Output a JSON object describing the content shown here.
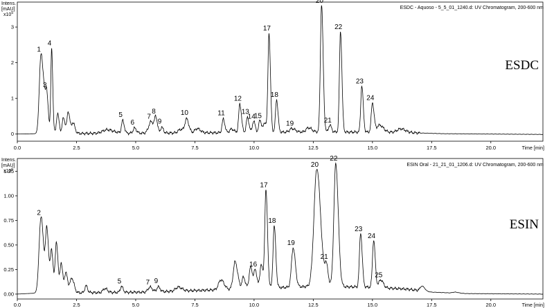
{
  "chart_data": [
    {
      "type": "line",
      "title": "ESDC - Aquoso - 5_5_01_1240.d: UV Chromatogram, 200-600 nm",
      "sample_label": "ESDC",
      "ylabel_lines": [
        "Intens.",
        "[mAU]"
      ],
      "y_exponent": "x10",
      "y_exponent_power": "5",
      "xlabel": "Time [min]",
      "xlim": [
        0,
        22.2
      ],
      "ylim": [
        -0.2,
        3.7
      ],
      "x_ticks": [
        "0.0",
        "2.5",
        "5.0",
        "7.5",
        "10.0",
        "12.5",
        "15.0",
        "17.5",
        "20.0"
      ],
      "x_tick_values": [
        0,
        2.5,
        5,
        7.5,
        10,
        12.5,
        15,
        17.5,
        20
      ],
      "y_ticks": [
        "0",
        "1",
        "2",
        "3"
      ],
      "y_tick_values": [
        0,
        1,
        2,
        3
      ],
      "baseline_points": [
        [
          0,
          0
        ],
        [
          0.8,
          0.01
        ],
        [
          9.0,
          0.04
        ],
        [
          12.5,
          0.06
        ],
        [
          16.0,
          0.05
        ],
        [
          18.0,
          0.01
        ],
        [
          22.2,
          -0.01
        ]
      ],
      "peaks": [
        {
          "label": "1",
          "x": 1.0,
          "y": 2.25,
          "w": 0.07
        },
        {
          "label": "",
          "x": 1.15,
          "y": 0.6,
          "w": 0.05
        },
        {
          "label": "3",
          "x": 1.25,
          "y": 0.95,
          "w": 0.05
        },
        {
          "label": "4",
          "x": 1.45,
          "y": 2.38,
          "w": 0.035
        },
        {
          "label": "",
          "x": 1.7,
          "y": 0.55,
          "w": 0.05
        },
        {
          "label": "",
          "x": 1.95,
          "y": 0.45,
          "w": 0.05
        },
        {
          "label": "",
          "x": 2.15,
          "y": 0.62,
          "w": 0.05
        },
        {
          "label": "",
          "x": 2.35,
          "y": 0.3,
          "w": 0.06
        },
        {
          "label": "",
          "x": 3.8,
          "y": 0.1,
          "w": 0.2
        },
        {
          "label": "5",
          "x": 4.45,
          "y": 0.35,
          "w": 0.05
        },
        {
          "label": "6",
          "x": 4.95,
          "y": 0.14,
          "w": 0.06
        },
        {
          "label": "7",
          "x": 5.65,
          "y": 0.32,
          "w": 0.1
        },
        {
          "label": "8",
          "x": 5.85,
          "y": 0.38,
          "w": 0.05
        },
        {
          "label": "9",
          "x": 6.1,
          "y": 0.16,
          "w": 0.05
        },
        {
          "label": "",
          "x": 6.9,
          "y": 0.1,
          "w": 0.1
        },
        {
          "label": "10",
          "x": 7.15,
          "y": 0.38,
          "w": 0.07
        },
        {
          "label": "",
          "x": 7.6,
          "y": 0.12,
          "w": 0.1
        },
        {
          "label": "11",
          "x": 8.7,
          "y": 0.38,
          "w": 0.05
        },
        {
          "label": "",
          "x": 9.05,
          "y": 0.1,
          "w": 0.08
        },
        {
          "label": "12",
          "x": 9.4,
          "y": 0.8,
          "w": 0.05
        },
        {
          "label": "13",
          "x": 9.72,
          "y": 0.42,
          "w": 0.05
        },
        {
          "label": "14",
          "x": 9.98,
          "y": 0.32,
          "w": 0.05
        },
        {
          "label": "15",
          "x": 10.25,
          "y": 0.35,
          "w": 0.05
        },
        {
          "label": "",
          "x": 10.45,
          "y": 0.28,
          "w": 0.05
        },
        {
          "label": "17",
          "x": 10.63,
          "y": 2.77,
          "w": 0.045
        },
        {
          "label": "18",
          "x": 10.95,
          "y": 0.92,
          "w": 0.045
        },
        {
          "label": "19",
          "x": 11.6,
          "y": 0.1,
          "w": 0.1
        },
        {
          "label": "",
          "x": 12.3,
          "y": 0.12,
          "w": 0.1
        },
        {
          "label": "20",
          "x": 12.85,
          "y": 3.58,
          "w": 0.05
        },
        {
          "label": "21",
          "x": 13.2,
          "y": 0.2,
          "w": 0.05
        },
        {
          "label": "22",
          "x": 13.65,
          "y": 2.82,
          "w": 0.045
        },
        {
          "label": "23",
          "x": 14.55,
          "y": 1.3,
          "w": 0.045
        },
        {
          "label": "24",
          "x": 15.0,
          "y": 0.82,
          "w": 0.05
        },
        {
          "label": "",
          "x": 15.3,
          "y": 0.2,
          "w": 0.12
        },
        {
          "label": "",
          "x": 16.2,
          "y": 0.1,
          "w": 0.15
        }
      ]
    },
    {
      "type": "line",
      "title": "ESIN Oral - 21_21_01_1206.d: UV Chromatogram, 200-600 nm",
      "sample_label": "ESIN",
      "ylabel_lines": [
        "Intens.",
        "[mAU]"
      ],
      "y_exponent": "x10",
      "y_exponent_power": "6",
      "xlabel": "Time [min]",
      "xlim": [
        0,
        22.2
      ],
      "ylim": [
        -0.05,
        1.38
      ],
      "x_ticks": [
        "0.0",
        "2.5",
        "5.0",
        "7.5",
        "10.0",
        "12.5",
        "15.0",
        "17.5",
        "20.0"
      ],
      "x_tick_values": [
        0,
        2.5,
        5,
        7.5,
        10,
        12.5,
        15,
        17.5,
        20
      ],
      "y_ticks": [
        "0.00",
        "0.25",
        "0.50",
        "0.75",
        "1.00",
        "1.25"
      ],
      "y_tick_values": [
        0,
        0.25,
        0.5,
        0.75,
        1,
        1.25
      ],
      "baseline_points": [
        [
          0,
          0
        ],
        [
          0.8,
          0.01
        ],
        [
          5.5,
          0.02
        ],
        [
          8.0,
          0.04
        ],
        [
          10.5,
          0.06
        ],
        [
          12.5,
          0.08
        ],
        [
          15.0,
          0.07
        ],
        [
          16.5,
          0.05
        ],
        [
          17.5,
          0.02
        ],
        [
          19.0,
          0.005
        ],
        [
          22.2,
          0
        ]
      ],
      "peaks": [
        {
          "label": "2",
          "x": 1.0,
          "y": 0.78,
          "w": 0.08
        },
        {
          "label": "",
          "x": 1.25,
          "y": 0.62,
          "w": 0.06
        },
        {
          "label": "",
          "x": 1.45,
          "y": 0.42,
          "w": 0.05
        },
        {
          "label": "",
          "x": 1.65,
          "y": 0.52,
          "w": 0.05
        },
        {
          "label": "",
          "x": 1.85,
          "y": 0.3,
          "w": 0.05
        },
        {
          "label": "",
          "x": 2.05,
          "y": 0.2,
          "w": 0.06
        },
        {
          "label": "",
          "x": 2.3,
          "y": 0.15,
          "w": 0.07
        },
        {
          "label": "",
          "x": 2.9,
          "y": 0.07,
          "w": 0.05
        },
        {
          "label": "",
          "x": 3.7,
          "y": 0.04,
          "w": 0.08
        },
        {
          "label": "5",
          "x": 4.4,
          "y": 0.06,
          "w": 0.05
        },
        {
          "label": "7",
          "x": 5.6,
          "y": 0.05,
          "w": 0.08
        },
        {
          "label": "9",
          "x": 5.95,
          "y": 0.05,
          "w": 0.06
        },
        {
          "label": "",
          "x": 6.8,
          "y": 0.04,
          "w": 0.12
        },
        {
          "label": "",
          "x": 8.6,
          "y": 0.1,
          "w": 0.1
        },
        {
          "label": "",
          "x": 9.2,
          "y": 0.28,
          "w": 0.08
        },
        {
          "label": "",
          "x": 9.55,
          "y": 0.12,
          "w": 0.06
        },
        {
          "label": "",
          "x": 9.85,
          "y": 0.22,
          "w": 0.06
        },
        {
          "label": "16",
          "x": 10.05,
          "y": 0.18,
          "w": 0.06
        },
        {
          "label": "",
          "x": 10.3,
          "y": 0.25,
          "w": 0.05
        },
        {
          "label": "17",
          "x": 10.5,
          "y": 1.0,
          "w": 0.05
        },
        {
          "label": "18",
          "x": 10.85,
          "y": 0.63,
          "w": 0.05
        },
        {
          "label": "19",
          "x": 11.65,
          "y": 0.4,
          "w": 0.07
        },
        {
          "label": "20",
          "x": 12.65,
          "y": 1.2,
          "w": 0.12
        },
        {
          "label": "21",
          "x": 13.05,
          "y": 0.2,
          "w": 0.06
        },
        {
          "label": "22",
          "x": 13.45,
          "y": 1.25,
          "w": 0.08
        },
        {
          "label": "23",
          "x": 14.5,
          "y": 0.55,
          "w": 0.05
        },
        {
          "label": "24",
          "x": 15.05,
          "y": 0.48,
          "w": 0.05
        },
        {
          "label": "25",
          "x": 15.35,
          "y": 0.08,
          "w": 0.08
        },
        {
          "label": "",
          "x": 17.1,
          "y": 0.05,
          "w": 0.08
        },
        {
          "label": "",
          "x": 18.5,
          "y": 0.01,
          "w": 0.1
        }
      ]
    }
  ]
}
